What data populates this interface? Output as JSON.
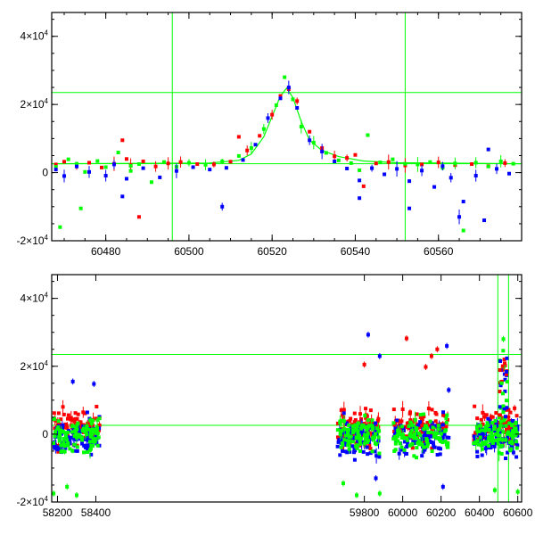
{
  "colors": {
    "red": "#ff0000",
    "green": "#00ff00",
    "blue": "#0000ff",
    "marker_line": "#00ff00",
    "model": "#00ff00"
  },
  "chart_data": [
    {
      "type": "scatter",
      "panel": "top",
      "title": "",
      "xlabel": "",
      "ylabel": "",
      "xlim": [
        60467,
        60580
      ],
      "ylim": [
        -20000,
        47000
      ],
      "x_ticks": [
        60480,
        60500,
        60520,
        60540,
        60560
      ],
      "y_ticks": [
        {
          "value": -20000,
          "mant": "-2×10",
          "exp": "4"
        },
        {
          "value": 0,
          "mant": "0",
          "exp": ""
        },
        {
          "value": 20000,
          "mant": "2×10",
          "exp": "4"
        },
        {
          "value": 40000,
          "mant": "4×10",
          "exp": "4"
        }
      ],
      "hlines": [
        23500,
        2600
      ],
      "vlines": [
        60496,
        60552
      ],
      "model_curve": {
        "x": [
          60467,
          60505,
          60512,
          60515,
          60518,
          60520,
          60522,
          60523.5,
          60525,
          60527,
          60529,
          60532,
          60536,
          60542,
          60550,
          60580
        ],
        "y": [
          2600,
          2800,
          3600,
          5500,
          10500,
          16500,
          22500,
          24800,
          22000,
          15000,
          9500,
          6500,
          4700,
          3400,
          2900,
          2600
        ]
      },
      "series": [
        {
          "color": "red",
          "x": [
            60468,
            60470,
            60473,
            60476,
            60479,
            60482,
            60484,
            60485,
            60486,
            60489,
            60492,
            60495,
            60498,
            60502,
            60506,
            60510,
            60512,
            60514,
            60517,
            60520,
            60522,
            60524,
            60526,
            60529,
            60532,
            60535,
            60538,
            60540,
            60542,
            60545,
            60548,
            60552,
            60556,
            60560,
            60564,
            60568,
            60572,
            60576,
            60488
          ],
          "y": [
            2400,
            3200,
            2000,
            2900,
            1500,
            2600,
            9500,
            4000,
            2200,
            3300,
            1800,
            2700,
            3100,
            2500,
            2400,
            3200,
            10500,
            6500,
            10800,
            17000,
            22500,
            24500,
            21000,
            12000,
            7200,
            4800,
            4300,
            5200,
            -4000,
            2700,
            3100,
            2100,
            2400,
            3000,
            2200,
            2500,
            1900,
            2800,
            -13000
          ]
        },
        {
          "color": "green",
          "x": [
            60468,
            60471,
            60473,
            60475,
            60478,
            60480,
            60483,
            60486,
            60488,
            60491,
            60494,
            60497,
            60500,
            60504,
            60508,
            60512,
            60515,
            60518,
            60521,
            60523,
            60525,
            60527,
            60530,
            60533,
            60536,
            60539,
            60541,
            60543,
            60546,
            60549,
            60552,
            60555,
            60558,
            60561,
            60564,
            60566,
            60569,
            60572,
            60575,
            60578,
            60469,
            60474,
            60486
          ],
          "y": [
            1700,
            3900,
            2600,
            200,
            3400,
            1600,
            5900,
            2000,
            2500,
            -2800,
            3100,
            1700,
            2900,
            2300,
            3300,
            4900,
            7200,
            12800,
            19800,
            28000,
            21500,
            13500,
            8800,
            5800,
            3600,
            2800,
            700,
            11000,
            3000,
            3900,
            2600,
            2400,
            3100,
            1400,
            2700,
            -17000,
            2900,
            1800,
            3300,
            2600,
            -16000,
            -10500,
            500
          ]
        },
        {
          "color": "blue",
          "x": [
            60468,
            60470,
            60473,
            60476,
            60480,
            60482,
            60485,
            60489,
            60493,
            60497,
            60501,
            60505,
            60509,
            60513,
            60516,
            60519,
            60522,
            60524,
            60526,
            60529,
            60532,
            60535,
            60538,
            60541,
            60544,
            60547,
            60550,
            60553,
            60556,
            60559,
            60561,
            60563,
            60566,
            60569,
            60572,
            60574,
            60577,
            60484,
            60508,
            60541,
            60553,
            60565,
            60571
          ],
          "y": [
            900,
            -1000,
            1800,
            200,
            -900,
            2400,
            -1800,
            1300,
            -1400,
            500,
            1600,
            900,
            1400,
            3700,
            8200,
            16000,
            21800,
            25000,
            19000,
            9500,
            6200,
            3300,
            1200,
            -2300,
            1300,
            -500,
            1100,
            -2500,
            600,
            -4200,
            1900,
            -1500,
            -8500,
            -900,
            6800,
            1100,
            -300,
            -7000,
            -10000,
            -7500,
            -10500,
            -13000,
            -14000
          ]
        }
      ]
    },
    {
      "type": "scatter",
      "panel": "bottom",
      "title": "",
      "xlabel": "",
      "ylabel": "",
      "xlim": [
        58170,
        60620
      ],
      "ylim": [
        -20000,
        47000
      ],
      "x_ticks": [
        58200,
        58300,
        58400,
        59800,
        60000,
        60200,
        60400,
        60600
      ],
      "x_ticks_shown": [
        58200,
        58400,
        59800,
        60000,
        60200,
        60400,
        60600
      ],
      "y_ticks": [
        {
          "value": -20000,
          "mant": "-2×10",
          "exp": "4"
        },
        {
          "value": 0,
          "mant": "0",
          "exp": ""
        },
        {
          "value": 20000,
          "mant": "2×10",
          "exp": "4"
        },
        {
          "value": 40000,
          "mant": "4×10",
          "exp": "4"
        }
      ],
      "hlines": [
        23500,
        2600
      ],
      "vlines": [
        60496,
        60552
      ],
      "seasons": [
        {
          "x0": 58180,
          "x1": 58420
        },
        {
          "x0": 59660,
          "x1": 59880
        },
        {
          "x0": 59950,
          "x1": 60240
        },
        {
          "x0": 60370,
          "x1": 60600
        }
      ],
      "highlights": [
        {
          "color": "blue",
          "x": 58280,
          "y": 15500
        },
        {
          "color": "blue",
          "x": 58390,
          "y": 14800
        },
        {
          "color": "blue",
          "x": 59820,
          "y": 29300
        },
        {
          "color": "blue",
          "x": 59880,
          "y": 23000
        },
        {
          "color": "red",
          "x": 59800,
          "y": 20500
        },
        {
          "color": "red",
          "x": 60020,
          "y": 28200
        },
        {
          "color": "red",
          "x": 60150,
          "y": 23000
        },
        {
          "color": "red",
          "x": 60180,
          "y": 25000
        },
        {
          "color": "blue",
          "x": 60230,
          "y": 26000
        },
        {
          "color": "green",
          "x": 60525,
          "y": 28000
        },
        {
          "color": "red",
          "x": 60120,
          "y": 19800
        },
        {
          "color": "blue",
          "x": 60240,
          "y": 13000
        },
        {
          "color": "green",
          "x": 58180,
          "y": -17500
        },
        {
          "color": "green",
          "x": 58250,
          "y": -15500
        },
        {
          "color": "green",
          "x": 58300,
          "y": -18000
        },
        {
          "color": "green",
          "x": 59690,
          "y": -14500
        },
        {
          "color": "green",
          "x": 59760,
          "y": -18000
        },
        {
          "color": "green",
          "x": 59880,
          "y": -17500
        },
        {
          "color": "blue",
          "x": 59860,
          "y": -13000
        },
        {
          "color": "blue",
          "x": 60210,
          "y": -15500
        },
        {
          "color": "green",
          "x": 60480,
          "y": -16500
        },
        {
          "color": "green",
          "x": 60600,
          "y": -17000
        }
      ]
    }
  ]
}
